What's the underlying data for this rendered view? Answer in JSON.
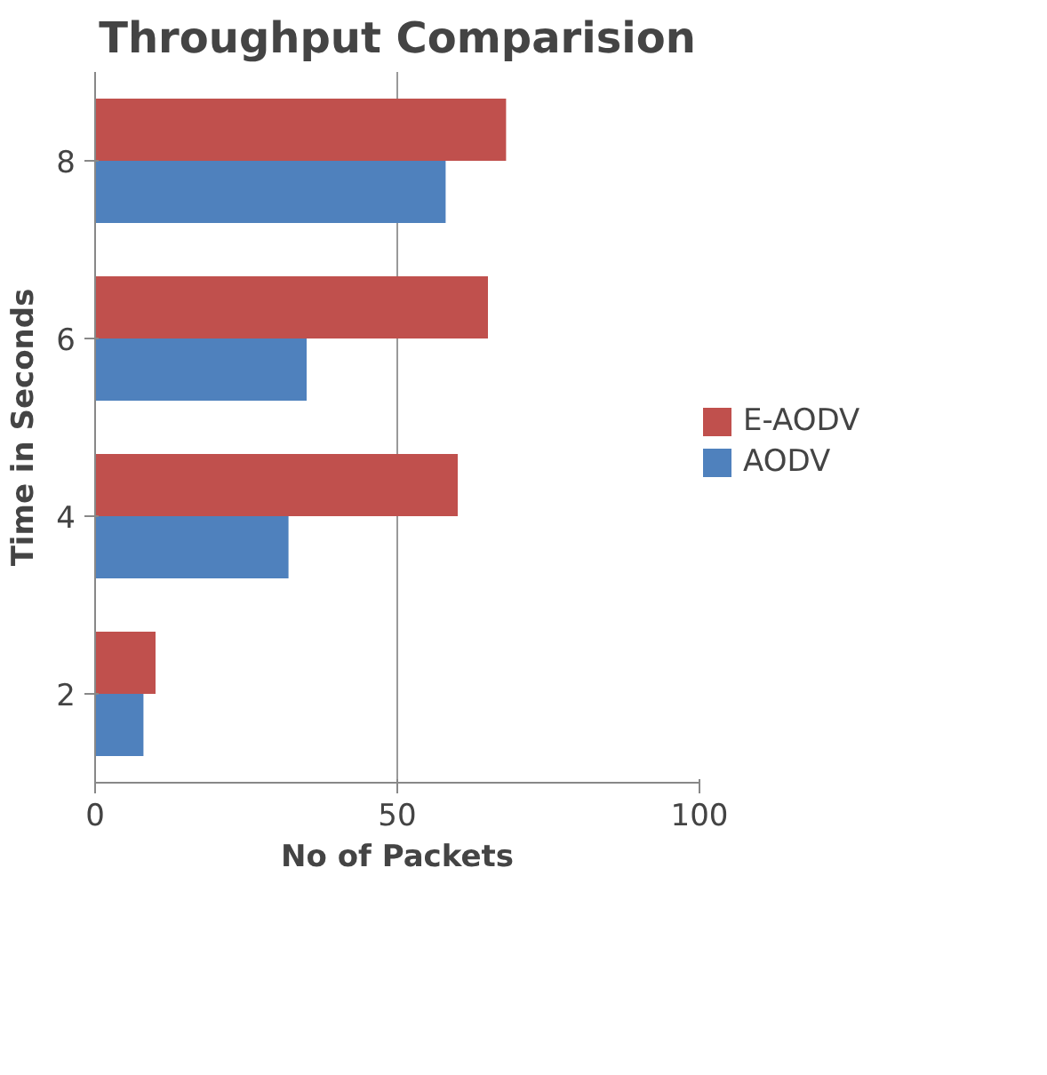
{
  "chart_data": {
    "type": "bar",
    "orientation": "horizontal",
    "title": "Throughput Comparision",
    "xlabel": "No of Packets",
    "ylabel": "Time in Seconds",
    "categories": [
      "8",
      "6",
      "4",
      "2"
    ],
    "series": [
      {
        "name": "E-AODV",
        "color": "#c0504d",
        "values": [
          68,
          65,
          60,
          10
        ]
      },
      {
        "name": "AODV",
        "color": "#4f81bd",
        "values": [
          58,
          35,
          32,
          8
        ]
      }
    ],
    "xlim": [
      0,
      100
    ],
    "xticks": [
      0,
      50,
      100
    ],
    "grid": "x",
    "legend": "right"
  }
}
